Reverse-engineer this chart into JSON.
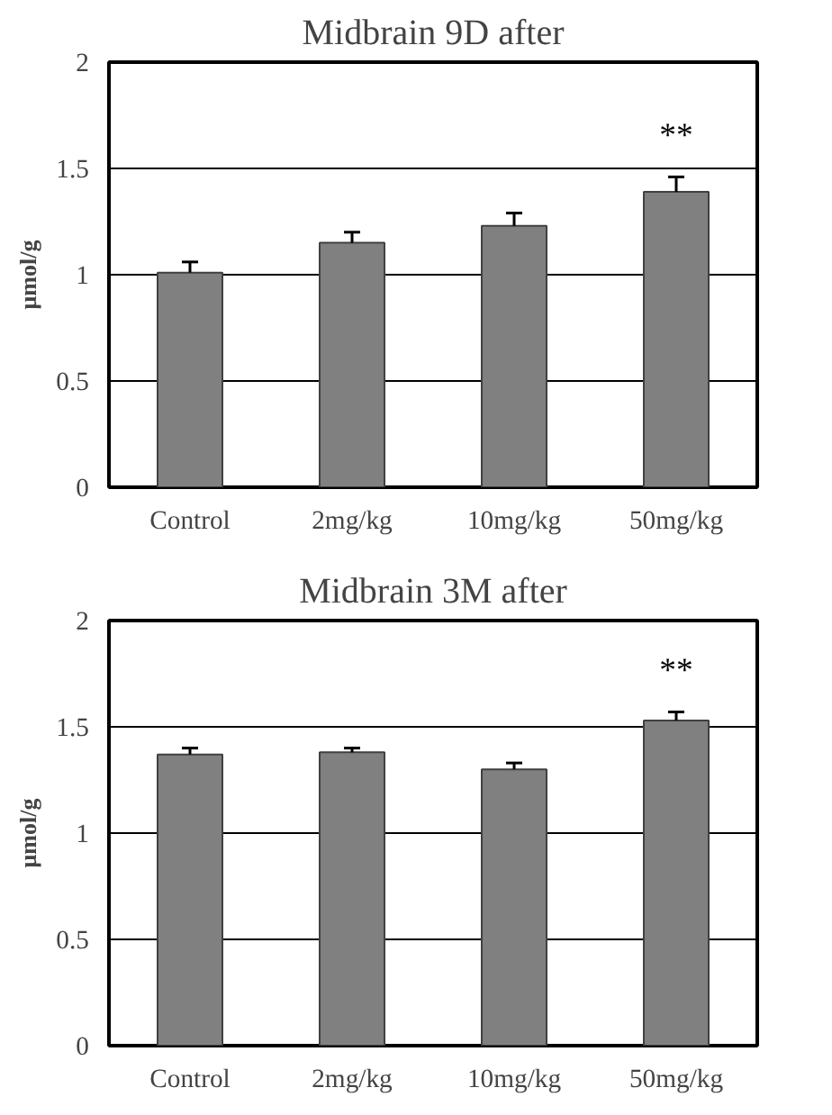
{
  "chart_data": [
    {
      "type": "bar",
      "title": "Midbrain 9D after",
      "ylabel": "μmol/g",
      "categories": [
        "Control",
        "2mg/kg",
        "10mg/kg",
        "50mg/kg"
      ],
      "values": [
        1.01,
        1.15,
        1.23,
        1.39
      ],
      "errors": [
        [
          1.01,
          1.06
        ],
        [
          1.15,
          1.2
        ],
        [
          1.23,
          1.29
        ],
        [
          1.39,
          1.46
        ]
      ],
      "color": "#808080",
      "ylim": [
        0,
        2
      ],
      "yticks": [
        0,
        0.5,
        1,
        1.5,
        2
      ],
      "grid": "y",
      "annotations": [
        "**"
      ]
    },
    {
      "type": "bar",
      "title": "Midbrain 3M after",
      "ylabel": "μmol/g",
      "categories": [
        "Control",
        "2mg/kg",
        "10mg/kg",
        "50mg/kg"
      ],
      "values": [
        1.37,
        1.38,
        1.3,
        1.53
      ],
      "errors": [
        [
          1.37,
          1.4
        ],
        [
          1.38,
          1.4
        ],
        [
          1.3,
          1.33
        ],
        [
          1.53,
          1.57
        ]
      ],
      "color": "#808080",
      "ylim": [
        0,
        2
      ],
      "yticks": [
        0,
        0.5,
        1,
        1.5,
        2
      ],
      "grid": "y",
      "annotations": [
        "**"
      ]
    }
  ]
}
